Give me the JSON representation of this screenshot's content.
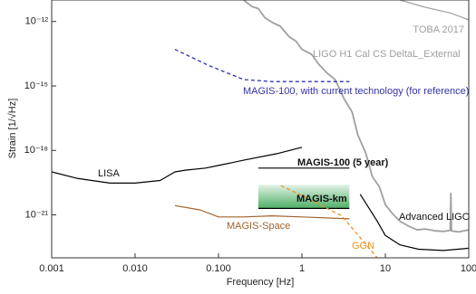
{
  "chart_data": {
    "type": "line",
    "xlabel": "Frequency [Hz]",
    "ylabel": "Strain [1/√Hz]",
    "xscale": "log",
    "yscale": "log",
    "xlim": [
      0.001,
      100
    ],
    "ylim": [
      1e-23,
      1e-11
    ],
    "xticks": [
      0.001,
      {
        "value": 0.01,
        "label": "0.010"
      },
      {
        "value": 0.1,
        "label": "0.100"
      },
      1,
      10,
      100
    ],
    "yticks": [
      {
        "value": 1e-12,
        "label": "10⁻¹²"
      },
      {
        "value": 1e-15,
        "label": "10⁻¹⁵"
      },
      {
        "value": 1e-18,
        "label": "10⁻¹⁸"
      },
      {
        "value": 1e-21,
        "label": "10⁻²¹"
      }
    ],
    "series": [
      {
        "name": "LISA",
        "color": "#000000",
        "linestyle": "solid",
        "x": [
          0.001,
          0.002,
          0.005,
          0.01,
          0.02,
          0.03,
          0.04,
          0.07,
          0.1,
          0.2,
          0.5,
          1
        ],
        "values": [
          1e-19,
          5e-20,
          3e-20,
          3e-20,
          4e-20,
          1e-19,
          1.2e-19,
          1.5e-19,
          2e-19,
          3.5e-19,
          7e-19,
          1.4e-18
        ]
      },
      {
        "name": "Advanced LIGO",
        "color": "#000000",
        "linestyle": "solid",
        "x": [
          5,
          8,
          10,
          15,
          25,
          50,
          100
        ],
        "values": [
          9e-21,
          5e-22,
          1.1e-22,
          4e-23,
          2.5e-23,
          2.2e-23,
          2.8e-23
        ]
      },
      {
        "name": "LIGO H1 Cal CS DeltaL_External",
        "color": "#a0a0a0",
        "linestyle": "solid",
        "x": [
          0.2,
          0.25,
          0.3,
          0.36,
          0.44,
          0.55,
          0.7,
          0.85,
          1,
          1.3,
          1.6,
          2,
          2.5,
          3.2,
          4,
          4.7,
          5.8,
          7,
          8.5,
          10,
          12,
          15,
          19,
          24,
          30,
          40,
          50,
          60,
          61,
          62,
          75,
          100
        ],
        "values": [
          1e-11,
          5e-12,
          4e-12,
          1.5e-12,
          9e-13,
          6e-13,
          2e-13,
          1.2e-13,
          5e-14,
          3e-14,
          1e-14,
          4e-15,
          2e-15,
          2.5e-16,
          6e-17,
          5e-18,
          8e-19,
          6e-20,
          2e-20,
          3e-21,
          1.2e-21,
          5e-22,
          3e-22,
          2e-22,
          2.2e-22,
          1.8e-22,
          1.7e-22,
          1.9e-22,
          1e-20,
          1.8e-22,
          1.6e-22,
          2e-22
        ]
      },
      {
        "name": "TOBA 2017",
        "color": "#a0a0a0",
        "linestyle": "solid",
        "x": [
          15,
          30,
          60,
          100
        ],
        "values": [
          1e-11,
          4.6e-12,
          2.5e-12,
          1.2e-12
        ]
      },
      {
        "name": "MAGIS-100, with current technology (for reference)",
        "color": "#3333aa",
        "linestyle": "dashed",
        "x": [
          0.03,
          0.076,
          0.2,
          0.44,
          2,
          3.7
        ],
        "values": [
          5e-14,
          9e-15,
          2e-15,
          1.6e-15,
          1.6e-15,
          1.6e-15
        ]
      },
      {
        "name": "MAGIS-100 (5 year)",
        "color": "#000000",
        "linestyle": "solid",
        "x": [
          0.3,
          3.7
        ],
        "values": [
          1.5e-19,
          1.5e-19
        ]
      },
      {
        "name": "MAGIS-km",
        "color": "#000000",
        "linestyle": "solid",
        "band_color": "#3aa655",
        "x": [
          0.3,
          3.7
        ],
        "values": [
          2e-21,
          2e-21
        ],
        "upper": [
          2.5e-20,
          2.5e-20
        ]
      },
      {
        "name": "MAGIS-Space",
        "color": "#a0622d",
        "linestyle": "solid",
        "x": [
          0.03,
          0.06,
          0.1,
          0.2,
          0.44,
          1,
          3.7
        ],
        "values": [
          2.7e-21,
          1.7e-21,
          8e-22,
          8e-22,
          9e-22,
          8e-22,
          6.5e-22
        ]
      },
      {
        "name": "GGN",
        "color": "#f0901c",
        "linestyle": "dashed",
        "x": [
          0.56,
          1,
          3,
          8
        ],
        "values": [
          2.3e-20,
          8e-21,
          9e-22,
          1e-23
        ]
      }
    ]
  }
}
